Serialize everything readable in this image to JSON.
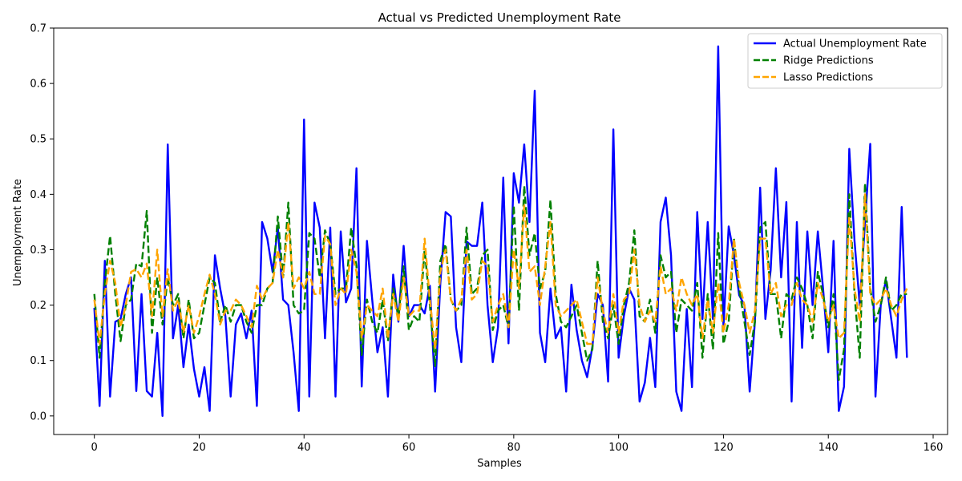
{
  "chart_data": {
    "type": "line",
    "title": "Actual vs Predicted Unemployment Rate",
    "xlabel": "Samples",
    "ylabel": "Unemployment Rate",
    "xlim": [
      -7.75,
      162.75
    ],
    "ylim": [
      -0.0335,
      0.7
    ],
    "xticks": [
      0,
      20,
      40,
      60,
      80,
      100,
      120,
      140,
      160
    ],
    "yticks": [
      0.0,
      0.1,
      0.2,
      0.3,
      0.4,
      0.5,
      0.6,
      0.7
    ],
    "xtick_labels": [
      "0",
      "20",
      "40",
      "60",
      "80",
      "100",
      "120",
      "140",
      "160"
    ],
    "ytick_labels": [
      "0.0",
      "0.1",
      "0.2",
      "0.3",
      "0.4",
      "0.5",
      "0.6",
      "0.7"
    ],
    "grid": false,
    "legend_position": "top-right",
    "series": [
      {
        "name": "Actual Unemployment Rate",
        "color": "#0000ff",
        "style": "solid",
        "values": [
          0.195,
          0.018,
          0.28,
          0.035,
          0.17,
          0.175,
          0.22,
          0.25,
          0.045,
          0.22,
          0.045,
          0.035,
          0.15,
          0.0,
          0.49,
          0.14,
          0.2,
          0.088,
          0.165,
          0.085,
          0.035,
          0.088,
          0.009,
          0.29,
          0.23,
          0.18,
          0.035,
          0.165,
          0.185,
          0.14,
          0.19,
          0.018,
          0.35,
          0.32,
          0.26,
          0.34,
          0.21,
          0.2,
          0.115,
          0.009,
          0.535,
          0.035,
          0.385,
          0.34,
          0.14,
          0.34,
          0.035,
          0.333,
          0.205,
          0.23,
          0.447,
          0.053,
          0.316,
          0.21,
          0.115,
          0.16,
          0.035,
          0.255,
          0.17,
          0.307,
          0.18,
          0.2,
          0.2,
          0.185,
          0.235,
          0.044,
          0.24,
          0.368,
          0.36,
          0.16,
          0.097,
          0.315,
          0.307,
          0.307,
          0.385,
          0.2,
          0.097,
          0.16,
          0.43,
          0.131,
          0.438,
          0.385,
          0.49,
          0.35,
          0.587,
          0.15,
          0.097,
          0.23,
          0.14,
          0.16,
          0.044,
          0.237,
          0.155,
          0.1,
          0.07,
          0.125,
          0.22,
          0.2,
          0.062,
          0.517,
          0.105,
          0.18,
          0.23,
          0.21,
          0.026,
          0.06,
          0.141,
          0.052,
          0.35,
          0.394,
          0.29,
          0.044,
          0.009,
          0.193,
          0.052,
          0.368,
          0.175,
          0.35,
          0.175,
          0.667,
          0.16,
          0.342,
          0.29,
          0.218,
          0.2,
          0.044,
          0.17,
          0.412,
          0.175,
          0.263,
          0.447,
          0.25,
          0.386,
          0.026,
          0.35,
          0.123,
          0.333,
          0.2,
          0.333,
          0.23,
          0.115,
          0.316,
          0.009,
          0.053,
          0.482,
          0.316,
          0.2,
          0.35,
          0.491,
          0.035,
          0.2,
          0.245,
          0.175,
          0.105,
          0.377,
          0.105
        ]
      },
      {
        "name": "Ridge Predictions",
        "color": "#008000",
        "style": "dashed",
        "values": [
          0.22,
          0.105,
          0.24,
          0.325,
          0.22,
          0.135,
          0.2,
          0.21,
          0.275,
          0.27,
          0.37,
          0.15,
          0.25,
          0.165,
          0.25,
          0.2,
          0.22,
          0.14,
          0.21,
          0.14,
          0.15,
          0.2,
          0.25,
          0.24,
          0.17,
          0.2,
          0.17,
          0.2,
          0.2,
          0.17,
          0.15,
          0.2,
          0.2,
          0.23,
          0.24,
          0.36,
          0.25,
          0.385,
          0.2,
          0.185,
          0.19,
          0.33,
          0.32,
          0.25,
          0.335,
          0.31,
          0.22,
          0.23,
          0.23,
          0.34,
          0.27,
          0.11,
          0.21,
          0.17,
          0.15,
          0.21,
          0.135,
          0.23,
          0.18,
          0.27,
          0.155,
          0.18,
          0.17,
          0.3,
          0.2,
          0.09,
          0.28,
          0.31,
          0.21,
          0.19,
          0.2,
          0.34,
          0.22,
          0.23,
          0.29,
          0.3,
          0.155,
          0.19,
          0.2,
          0.16,
          0.38,
          0.19,
          0.415,
          0.29,
          0.33,
          0.23,
          0.26,
          0.39,
          0.22,
          0.17,
          0.16,
          0.18,
          0.2,
          0.15,
          0.1,
          0.12,
          0.28,
          0.17,
          0.14,
          0.2,
          0.13,
          0.2,
          0.24,
          0.335,
          0.18,
          0.17,
          0.21,
          0.15,
          0.29,
          0.25,
          0.26,
          0.15,
          0.21,
          0.2,
          0.19,
          0.24,
          0.105,
          0.22,
          0.12,
          0.33,
          0.13,
          0.17,
          0.32,
          0.23,
          0.17,
          0.11,
          0.17,
          0.34,
          0.35,
          0.22,
          0.22,
          0.14,
          0.22,
          0.21,
          0.25,
          0.23,
          0.2,
          0.14,
          0.26,
          0.22,
          0.16,
          0.22,
          0.065,
          0.12,
          0.4,
          0.22,
          0.105,
          0.42,
          0.23,
          0.17,
          0.2,
          0.25,
          0.19,
          0.2,
          0.22,
          0.22
        ]
      },
      {
        "name": "Lasso Predictions",
        "color": "#ffa500",
        "style": "dashed",
        "values": [
          0.21,
          0.13,
          0.22,
          0.28,
          0.24,
          0.16,
          0.2,
          0.26,
          0.265,
          0.25,
          0.275,
          0.18,
          0.3,
          0.18,
          0.265,
          0.19,
          0.21,
          0.15,
          0.2,
          0.15,
          0.18,
          0.22,
          0.255,
          0.22,
          0.165,
          0.19,
          0.19,
          0.21,
          0.2,
          0.18,
          0.16,
          0.235,
          0.21,
          0.23,
          0.24,
          0.3,
          0.25,
          0.35,
          0.23,
          0.25,
          0.23,
          0.26,
          0.22,
          0.22,
          0.325,
          0.31,
          0.2,
          0.23,
          0.22,
          0.3,
          0.26,
          0.14,
          0.2,
          0.19,
          0.18,
          0.23,
          0.14,
          0.22,
          0.17,
          0.25,
          0.18,
          0.19,
          0.19,
          0.32,
          0.21,
          0.12,
          0.26,
          0.3,
          0.21,
          0.19,
          0.21,
          0.3,
          0.21,
          0.22,
          0.28,
          0.27,
          0.17,
          0.2,
          0.22,
          0.16,
          0.3,
          0.23,
          0.38,
          0.26,
          0.27,
          0.2,
          0.27,
          0.35,
          0.2,
          0.18,
          0.19,
          0.2,
          0.21,
          0.17,
          0.13,
          0.13,
          0.25,
          0.19,
          0.15,
          0.22,
          0.15,
          0.21,
          0.22,
          0.3,
          0.2,
          0.17,
          0.19,
          0.17,
          0.27,
          0.22,
          0.23,
          0.19,
          0.25,
          0.22,
          0.2,
          0.22,
          0.14,
          0.21,
          0.15,
          0.24,
          0.15,
          0.2,
          0.32,
          0.24,
          0.2,
          0.15,
          0.19,
          0.32,
          0.32,
          0.22,
          0.24,
          0.18,
          0.2,
          0.2,
          0.24,
          0.21,
          0.2,
          0.17,
          0.24,
          0.21,
          0.17,
          0.2,
          0.14,
          0.15,
          0.36,
          0.23,
          0.17,
          0.4,
          0.22,
          0.2,
          0.21,
          0.23,
          0.2,
          0.18,
          0.21,
          0.23
        ]
      }
    ]
  }
}
